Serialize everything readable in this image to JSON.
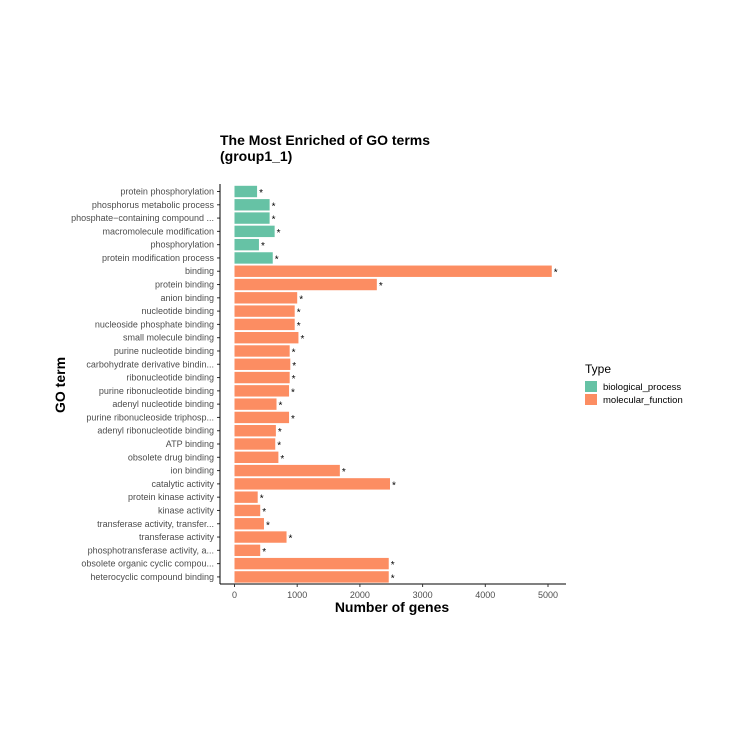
{
  "chart_data": {
    "type": "bar",
    "orientation": "horizontal",
    "title_lines": [
      "The Most Enriched of GO terms",
      "(group1_1)"
    ],
    "xlabel": "Number of genes",
    "ylabel": "GO term",
    "xlim": [
      0,
      5300
    ],
    "xticks": [
      0,
      1000,
      2000,
      3000,
      4000,
      5000
    ],
    "grid": false,
    "legend": {
      "title": "Type",
      "position": "right",
      "items": [
        {
          "name": "biological_process",
          "color": "#66C2A5"
        },
        {
          "name": "molecular_function",
          "color": "#FC8D62"
        }
      ]
    },
    "bars": [
      {
        "term": "protein phosphorylation",
        "value": 360,
        "type": "biological_process",
        "label": "*"
      },
      {
        "term": "phosphorus metabolic process",
        "value": 560,
        "type": "biological_process",
        "label": "*"
      },
      {
        "term": "phosphate−containing compound ...",
        "value": 560,
        "type": "biological_process",
        "label": "*"
      },
      {
        "term": "macromolecule modification",
        "value": 640,
        "type": "biological_process",
        "label": "*"
      },
      {
        "term": "phosphorylation",
        "value": 390,
        "type": "biological_process",
        "label": "*"
      },
      {
        "term": "protein modification process",
        "value": 610,
        "type": "biological_process",
        "label": "*"
      },
      {
        "term": "binding",
        "value": 5060,
        "type": "molecular_function",
        "label": "*"
      },
      {
        "term": "protein binding",
        "value": 2270,
        "type": "molecular_function",
        "label": "*"
      },
      {
        "term": "anion binding",
        "value": 1000,
        "type": "molecular_function",
        "label": "*"
      },
      {
        "term": "nucleotide binding",
        "value": 960,
        "type": "molecular_function",
        "label": "*"
      },
      {
        "term": "nucleoside phosphate binding",
        "value": 960,
        "type": "molecular_function",
        "label": "*"
      },
      {
        "term": "small molecule binding",
        "value": 1020,
        "type": "molecular_function",
        "label": "*"
      },
      {
        "term": "purine nucleotide binding",
        "value": 880,
        "type": "molecular_function",
        "label": "*"
      },
      {
        "term": "carbohydrate derivative bindin...",
        "value": 890,
        "type": "molecular_function",
        "label": "*"
      },
      {
        "term": "ribonucleotide binding",
        "value": 880,
        "type": "molecular_function",
        "label": "*"
      },
      {
        "term": "purine ribonucleotide binding",
        "value": 870,
        "type": "molecular_function",
        "label": "*"
      },
      {
        "term": "adenyl nucleotide binding",
        "value": 670,
        "type": "molecular_function",
        "label": "*"
      },
      {
        "term": "purine ribonucleoside triphosp...",
        "value": 870,
        "type": "molecular_function",
        "label": "*"
      },
      {
        "term": "adenyl ribonucleotide binding",
        "value": 660,
        "type": "molecular_function",
        "label": "*"
      },
      {
        "term": "ATP binding",
        "value": 650,
        "type": "molecular_function",
        "label": "*"
      },
      {
        "term": "obsolete drug binding",
        "value": 700,
        "type": "molecular_function",
        "label": "*"
      },
      {
        "term": "ion binding",
        "value": 1680,
        "type": "molecular_function",
        "label": "*"
      },
      {
        "term": "catalytic activity",
        "value": 2480,
        "type": "molecular_function",
        "label": "*"
      },
      {
        "term": "protein kinase activity",
        "value": 370,
        "type": "molecular_function",
        "label": "*"
      },
      {
        "term": "kinase activity",
        "value": 410,
        "type": "molecular_function",
        "label": "*"
      },
      {
        "term": "transferase activity, transfer...",
        "value": 470,
        "type": "molecular_function",
        "label": "*"
      },
      {
        "term": "transferase activity",
        "value": 830,
        "type": "molecular_function",
        "label": "*"
      },
      {
        "term": "phosphotransferase activity, a...",
        "value": 410,
        "type": "molecular_function",
        "label": "*"
      },
      {
        "term": "obsolete organic cyclic compou...",
        "value": 2460,
        "type": "molecular_function",
        "label": "*"
      },
      {
        "term": "heterocyclic compound binding",
        "value": 2460,
        "type": "molecular_function",
        "label": "*"
      }
    ]
  }
}
